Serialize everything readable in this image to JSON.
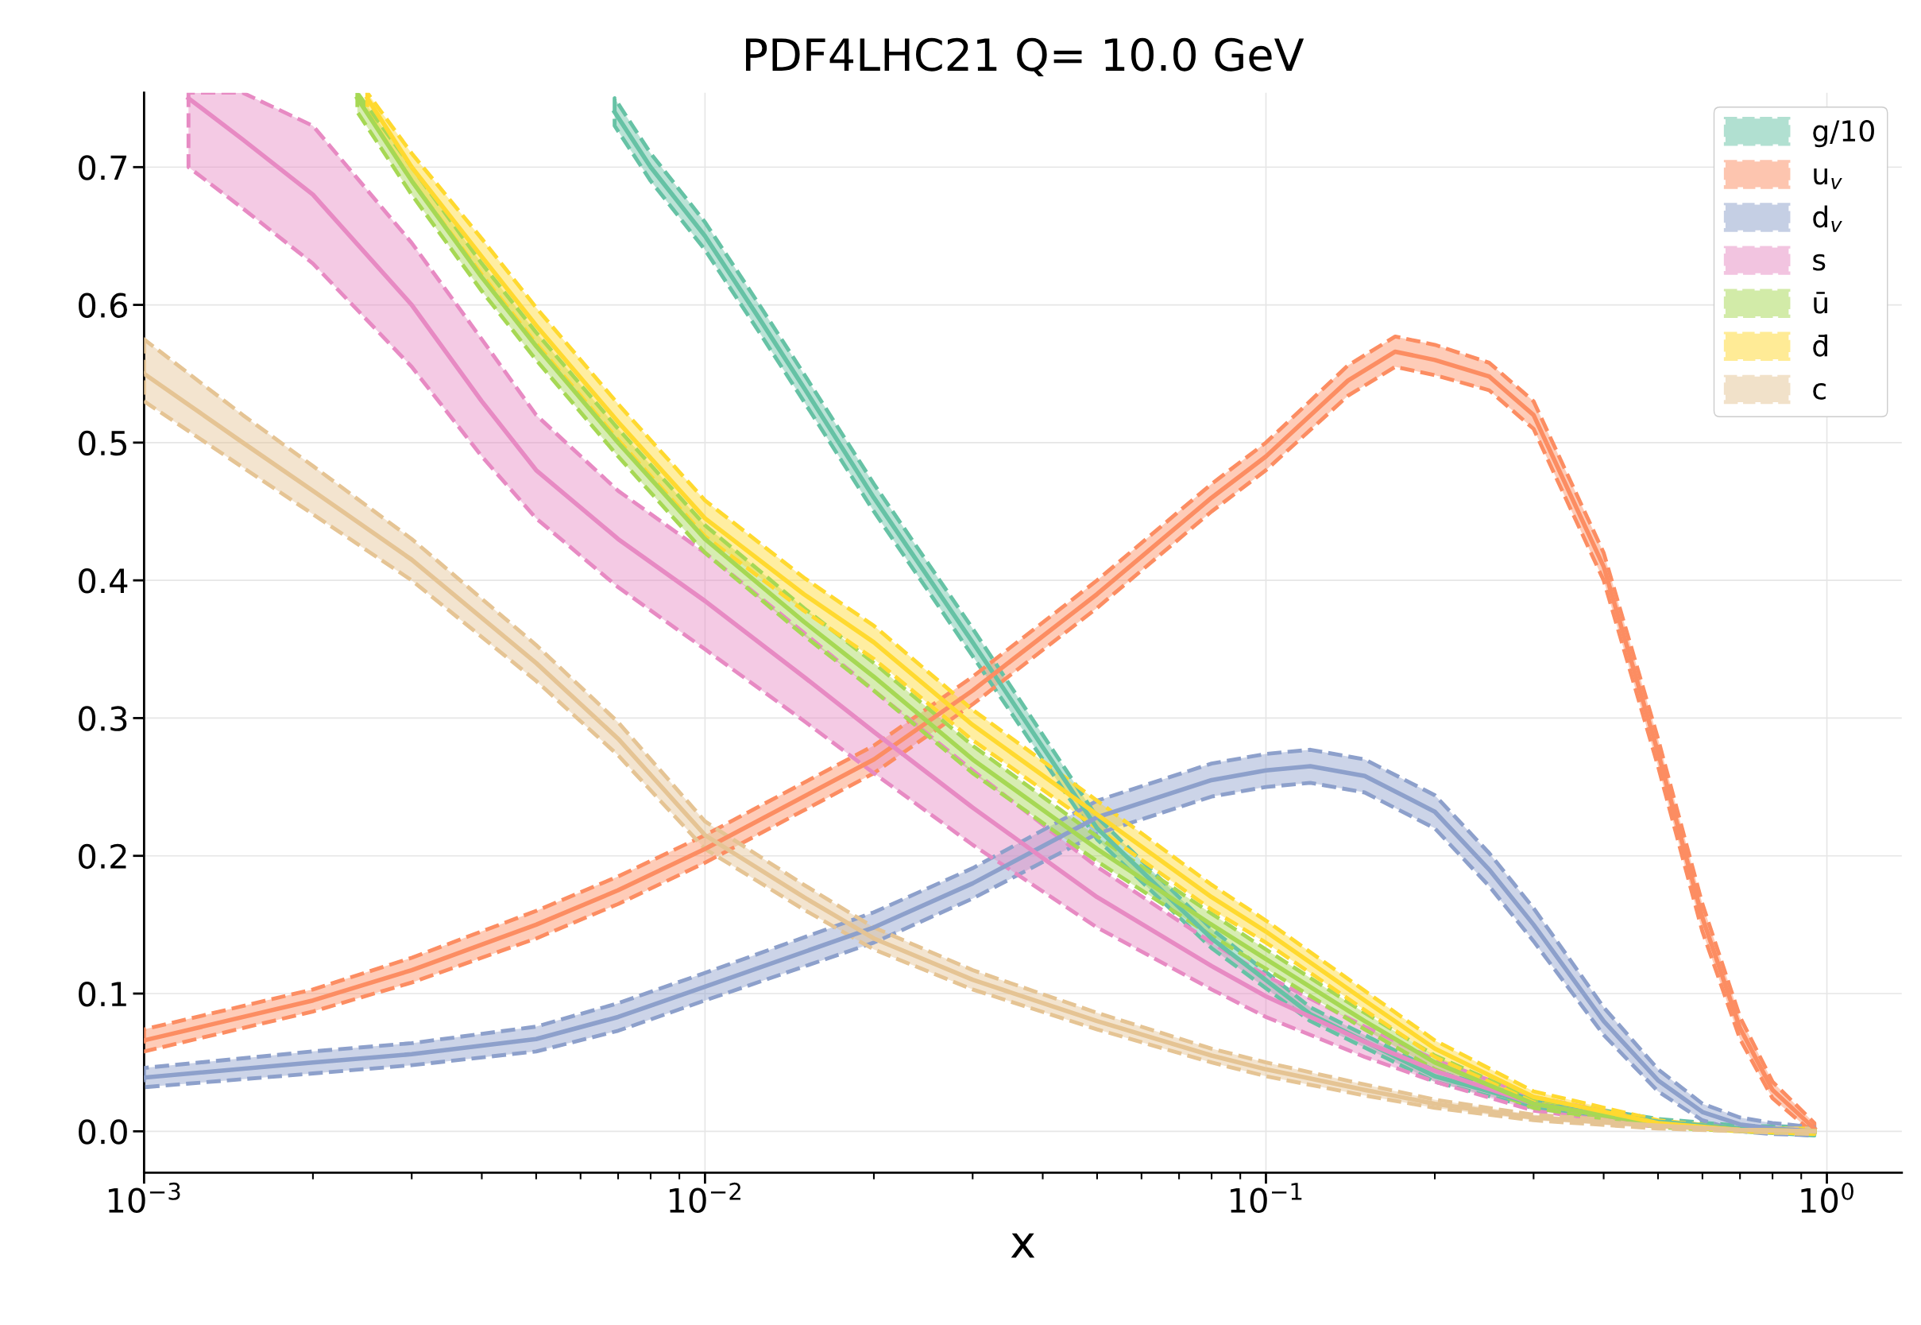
{
  "chart_data": {
    "type": "line",
    "title": "PDF4LHC21 Q= 10.0 GeV",
    "xlabel": "x",
    "log": "x",
    "grid": true,
    "legend": "top right",
    "xlim": [
      0.001,
      1.36
    ],
    "ylim": [
      -0.03,
      0.754
    ],
    "xticks": [
      {
        "value": 0.001,
        "label": "10$^{−3}$"
      },
      {
        "value": 0.01,
        "label": "10$^{−2}$"
      },
      {
        "value": 0.1,
        "label": "10$^{−1}$"
      },
      {
        "value": 1,
        "label": "10$^{0}$"
      }
    ],
    "yticks": [
      {
        "value": 0,
        "label": "0.0"
      },
      {
        "value": 0.1,
        "label": "0.1"
      },
      {
        "value": 0.2,
        "label": "0.2"
      },
      {
        "value": 0.3,
        "label": "0.3"
      },
      {
        "value": 0.4,
        "label": "0.4"
      },
      {
        "value": 0.5,
        "label": "0.5"
      },
      {
        "value": 0.6,
        "label": "0.6"
      },
      {
        "value": 0.7,
        "label": "0.7"
      }
    ],
    "series": [
      {
        "name": "g/10",
        "color": "#66c2a5",
        "x": [
          0.0069,
          0.008,
          0.01,
          0.0125,
          0.015,
          0.02,
          0.03,
          0.05,
          0.08,
          0.12,
          0.2,
          0.3,
          0.5,
          0.7,
          0.95
        ],
        "values": [
          0.74,
          0.7,
          0.65,
          0.59,
          0.54,
          0.46,
          0.355,
          0.22,
          0.14,
          0.085,
          0.04,
          0.02,
          0.007,
          0.002,
          0.0
        ],
        "lower": [
          0.73,
          0.69,
          0.64,
          0.58,
          0.53,
          0.45,
          0.345,
          0.212,
          0.133,
          0.08,
          0.036,
          0.017,
          0.005,
          0.0,
          -0.003
        ],
        "upper": [
          0.75,
          0.71,
          0.66,
          0.6,
          0.55,
          0.47,
          0.365,
          0.228,
          0.147,
          0.09,
          0.044,
          0.023,
          0.009,
          0.004,
          0.003
        ]
      },
      {
        "name": "u$_{v}$",
        "color": "#fc8d62",
        "x": [
          0.001,
          0.002,
          0.003,
          0.005,
          0.007,
          0.01,
          0.02,
          0.03,
          0.05,
          0.08,
          0.1,
          0.14,
          0.17,
          0.2,
          0.25,
          0.3,
          0.4,
          0.5,
          0.6,
          0.7,
          0.8,
          0.95
        ],
        "values": [
          0.066,
          0.095,
          0.117,
          0.15,
          0.175,
          0.205,
          0.27,
          0.32,
          0.39,
          0.46,
          0.49,
          0.545,
          0.566,
          0.56,
          0.548,
          0.52,
          0.41,
          0.275,
          0.155,
          0.075,
          0.03,
          0.002
        ],
        "lower": [
          0.058,
          0.087,
          0.108,
          0.14,
          0.165,
          0.195,
          0.26,
          0.31,
          0.38,
          0.45,
          0.48,
          0.534,
          0.555,
          0.549,
          0.538,
          0.51,
          0.4,
          0.265,
          0.145,
          0.067,
          0.024,
          -0.002
        ],
        "upper": [
          0.074,
          0.103,
          0.126,
          0.16,
          0.185,
          0.215,
          0.28,
          0.33,
          0.4,
          0.47,
          0.5,
          0.556,
          0.577,
          0.571,
          0.558,
          0.53,
          0.42,
          0.285,
          0.165,
          0.083,
          0.036,
          0.006
        ]
      },
      {
        "name": "d$_{v}$",
        "color": "#8da0cb",
        "x": [
          0.001,
          0.002,
          0.003,
          0.005,
          0.007,
          0.01,
          0.02,
          0.03,
          0.05,
          0.08,
          0.1,
          0.12,
          0.15,
          0.2,
          0.25,
          0.3,
          0.4,
          0.5,
          0.6,
          0.7,
          0.8,
          0.95
        ],
        "values": [
          0.039,
          0.05,
          0.056,
          0.067,
          0.083,
          0.105,
          0.148,
          0.18,
          0.228,
          0.255,
          0.262,
          0.265,
          0.258,
          0.232,
          0.19,
          0.15,
          0.08,
          0.037,
          0.014,
          0.005,
          0.002,
          0.0
        ],
        "lower": [
          0.032,
          0.042,
          0.048,
          0.058,
          0.073,
          0.095,
          0.137,
          0.169,
          0.216,
          0.243,
          0.25,
          0.253,
          0.246,
          0.22,
          0.178,
          0.138,
          0.07,
          0.029,
          0.008,
          0.0,
          -0.002,
          -0.003
        ],
        "upper": [
          0.046,
          0.058,
          0.064,
          0.076,
          0.093,
          0.115,
          0.159,
          0.191,
          0.24,
          0.267,
          0.274,
          0.277,
          0.27,
          0.244,
          0.202,
          0.162,
          0.09,
          0.045,
          0.02,
          0.01,
          0.006,
          0.003
        ]
      },
      {
        "name": "s",
        "color": "#e78ac3",
        "x": [
          0.0012,
          0.0015,
          0.002,
          0.003,
          0.004,
          0.005,
          0.007,
          0.01,
          0.015,
          0.02,
          0.03,
          0.05,
          0.08,
          0.1,
          0.15,
          0.2,
          0.3,
          0.5
        ],
        "values": [
          0.75,
          0.72,
          0.68,
          0.6,
          0.53,
          0.48,
          0.43,
          0.385,
          0.33,
          0.29,
          0.235,
          0.17,
          0.12,
          0.098,
          0.065,
          0.044,
          0.02,
          0.005
        ],
        "lower": [
          0.7,
          0.67,
          0.63,
          0.555,
          0.49,
          0.445,
          0.395,
          0.35,
          0.298,
          0.26,
          0.208,
          0.148,
          0.103,
          0.083,
          0.054,
          0.036,
          0.015,
          0.003
        ],
        "upper": [
          0.754,
          0.754,
          0.73,
          0.645,
          0.575,
          0.52,
          0.465,
          0.42,
          0.362,
          0.32,
          0.262,
          0.192,
          0.137,
          0.113,
          0.076,
          0.052,
          0.025,
          0.007
        ]
      },
      {
        "name": "ū",
        "color": "#a6d854",
        "x": [
          0.0024,
          0.003,
          0.004,
          0.005,
          0.007,
          0.01,
          0.015,
          0.02,
          0.03,
          0.05,
          0.08,
          0.1,
          0.15,
          0.2,
          0.3,
          0.5,
          0.7,
          0.95
        ],
        "values": [
          0.75,
          0.69,
          0.62,
          0.57,
          0.5,
          0.43,
          0.37,
          0.33,
          0.27,
          0.205,
          0.15,
          0.125,
          0.08,
          0.05,
          0.02,
          0.005,
          0.001,
          0.0
        ],
        "lower": [
          0.74,
          0.68,
          0.61,
          0.56,
          0.49,
          0.42,
          0.36,
          0.32,
          0.26,
          0.196,
          0.142,
          0.118,
          0.074,
          0.045,
          0.017,
          0.003,
          0.0,
          -0.002
        ],
        "upper": [
          0.754,
          0.7,
          0.63,
          0.58,
          0.51,
          0.44,
          0.38,
          0.34,
          0.28,
          0.214,
          0.158,
          0.132,
          0.086,
          0.055,
          0.023,
          0.007,
          0.002,
          0.002
        ]
      },
      {
        "name": "d̄",
        "color": "#ffd92f",
        "x": [
          0.0025,
          0.003,
          0.004,
          0.005,
          0.007,
          0.01,
          0.015,
          0.02,
          0.03,
          0.05,
          0.08,
          0.1,
          0.15,
          0.2,
          0.3,
          0.5,
          0.7,
          0.95
        ],
        "values": [
          0.75,
          0.7,
          0.635,
          0.585,
          0.515,
          0.445,
          0.39,
          0.355,
          0.295,
          0.23,
          0.17,
          0.145,
          0.095,
          0.06,
          0.025,
          0.006,
          0.001,
          0.0
        ],
        "lower": [
          0.74,
          0.69,
          0.622,
          0.572,
          0.502,
          0.432,
          0.378,
          0.343,
          0.284,
          0.22,
          0.161,
          0.137,
          0.088,
          0.054,
          0.021,
          0.004,
          0.0,
          -0.002
        ],
        "upper": [
          0.754,
          0.71,
          0.648,
          0.598,
          0.528,
          0.458,
          0.402,
          0.367,
          0.306,
          0.24,
          0.179,
          0.153,
          0.102,
          0.066,
          0.029,
          0.008,
          0.002,
          0.002
        ]
      },
      {
        "name": "c",
        "color": "#e5c494",
        "x": [
          0.001,
          0.0015,
          0.002,
          0.003,
          0.005,
          0.007,
          0.01,
          0.015,
          0.02,
          0.03,
          0.05,
          0.08,
          0.1,
          0.15,
          0.2,
          0.3,
          0.5,
          0.7,
          0.95
        ],
        "values": [
          0.55,
          0.5,
          0.465,
          0.415,
          0.34,
          0.285,
          0.215,
          0.17,
          0.14,
          0.11,
          0.08,
          0.055,
          0.045,
          0.03,
          0.02,
          0.01,
          0.004,
          0.001,
          0.0
        ],
        "lower": [
          0.53,
          0.482,
          0.448,
          0.4,
          0.327,
          0.273,
          0.205,
          0.161,
          0.132,
          0.103,
          0.074,
          0.05,
          0.04,
          0.026,
          0.017,
          0.008,
          0.002,
          0.0,
          -0.002
        ],
        "upper": [
          0.575,
          0.52,
          0.483,
          0.43,
          0.353,
          0.297,
          0.225,
          0.179,
          0.148,
          0.117,
          0.086,
          0.06,
          0.05,
          0.034,
          0.023,
          0.012,
          0.006,
          0.002,
          0.002
        ]
      }
    ]
  }
}
